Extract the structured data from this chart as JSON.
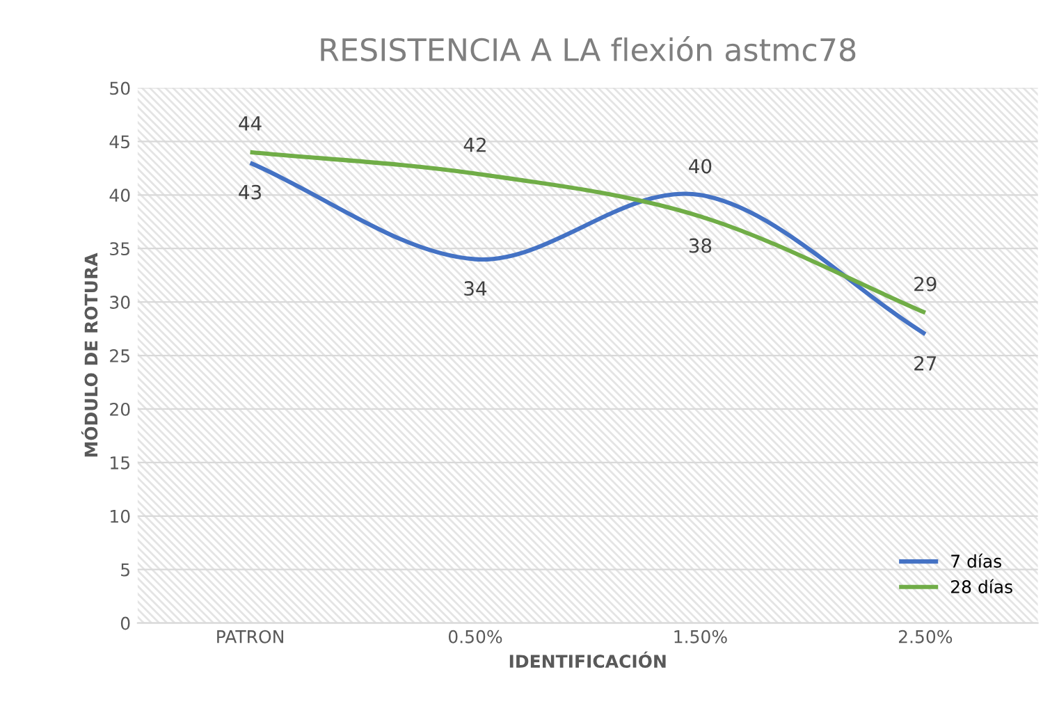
{
  "chart_data": {
    "type": "line",
    "title": "RESISTENCIA A LA flexión astmc78",
    "xlabel": "IDENTIFICACIÓN",
    "ylabel": "MÓDULO DE ROTURA",
    "categories": [
      "PATRON",
      "0.50%",
      "1.50%",
      "2.50%"
    ],
    "series": [
      {
        "name": "7 días",
        "color": "#4472c4",
        "values": [
          43,
          34,
          40,
          27
        ]
      },
      {
        "name": "28 días",
        "color": "#70ad47",
        "values": [
          44,
          42,
          38,
          29
        ]
      }
    ],
    "ylim": [
      0,
      50
    ],
    "yticks": [
      0,
      5,
      10,
      15,
      20,
      25,
      30,
      35,
      40,
      45,
      50
    ],
    "grid": "y",
    "legend": "bottom right",
    "data_labels": true,
    "marker": "none",
    "line_style": "solid"
  }
}
